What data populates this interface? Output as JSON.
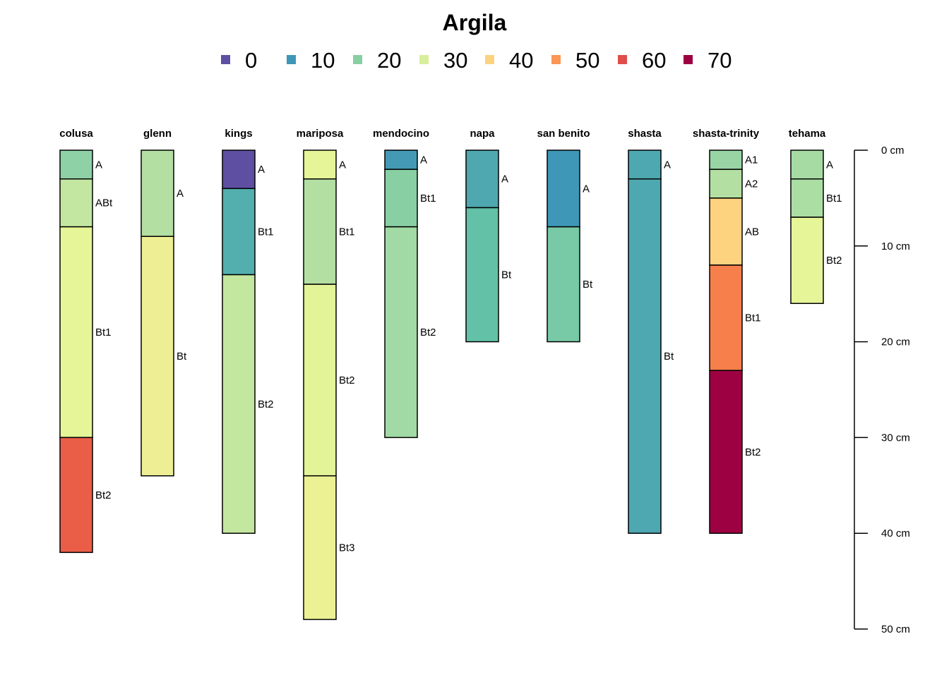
{
  "chart_data": {
    "type": "soil-profile",
    "title": "Argila",
    "legend": {
      "placement": "top-center",
      "entries": [
        {
          "label": "0",
          "color": "#5E4FA2"
        },
        {
          "label": "10",
          "color": "#3F96B7"
        },
        {
          "label": "20",
          "color": "#88CFA4"
        },
        {
          "label": "30",
          "color": "#D7EF9B"
        },
        {
          "label": "40",
          "color": "#FDD380"
        },
        {
          "label": "50",
          "color": "#FA9656"
        },
        {
          "label": "60",
          "color": "#DF4E4B"
        },
        {
          "label": "70",
          "color": "#9E0142"
        }
      ]
    },
    "depth_axis": {
      "ylim": [
        0,
        50
      ],
      "ticks": [
        0,
        10,
        20,
        30,
        40,
        50
      ],
      "tick_labels": [
        "0 cm",
        "10 cm",
        "20 cm",
        "30 cm",
        "40 cm",
        "50 cm"
      ]
    },
    "profiles": [
      {
        "name": "colusa",
        "horizons": [
          {
            "name": "A",
            "top": 0,
            "bottom": 3,
            "color": "#8ED1A6"
          },
          {
            "name": "ABt",
            "top": 3,
            "bottom": 8,
            "color": "#C3E7A0"
          },
          {
            "name": "Bt1",
            "top": 8,
            "bottom": 30,
            "color": "#E6F598"
          },
          {
            "name": "Bt2",
            "top": 30,
            "bottom": 42,
            "color": "#EA5E47"
          }
        ]
      },
      {
        "name": "glenn",
        "horizons": [
          {
            "name": "A",
            "top": 0,
            "bottom": 9,
            "color": "#B3E0A2"
          },
          {
            "name": "Bt",
            "top": 9,
            "bottom": 34,
            "color": "#EEEE94"
          }
        ]
      },
      {
        "name": "kings",
        "horizons": [
          {
            "name": "A",
            "top": 0,
            "bottom": 4,
            "color": "#5E4FA2"
          },
          {
            "name": "Bt1",
            "top": 4,
            "bottom": 13,
            "color": "#52AFAE"
          },
          {
            "name": "Bt2",
            "top": 13,
            "bottom": 40,
            "color": "#C3E79F"
          }
        ]
      },
      {
        "name": "mariposa",
        "horizons": [
          {
            "name": "A",
            "top": 0,
            "bottom": 3,
            "color": "#E6F598"
          },
          {
            "name": "Bt1",
            "top": 3,
            "bottom": 14,
            "color": "#B3E0A2"
          },
          {
            "name": "Bt2",
            "top": 14,
            "bottom": 34,
            "color": "#E3F397"
          },
          {
            "name": "Bt3",
            "top": 34,
            "bottom": 49,
            "color": "#ECF194"
          }
        ]
      },
      {
        "name": "mendocino",
        "horizons": [
          {
            "name": "A",
            "top": 0,
            "bottom": 2,
            "color": "#449AB5"
          },
          {
            "name": "Bt1",
            "top": 2,
            "bottom": 8,
            "color": "#88CFA4"
          },
          {
            "name": "Bt2",
            "top": 8,
            "bottom": 30,
            "color": "#A1DAA4"
          }
        ]
      },
      {
        "name": "napa",
        "horizons": [
          {
            "name": "A",
            "top": 0,
            "bottom": 6,
            "color": "#4FA8B0"
          },
          {
            "name": "Bt",
            "top": 6,
            "bottom": 20,
            "color": "#62C1A6"
          }
        ]
      },
      {
        "name": "san benito",
        "horizons": [
          {
            "name": "A",
            "top": 0,
            "bottom": 8,
            "color": "#3F97B7"
          },
          {
            "name": "Bt",
            "top": 8,
            "bottom": 20,
            "color": "#78C9A6"
          }
        ]
      },
      {
        "name": "shasta",
        "horizons": [
          {
            "name": "A",
            "top": 0,
            "bottom": 3,
            "color": "#4EA8B1"
          },
          {
            "name": "Bt",
            "top": 3,
            "bottom": 40,
            "color": "#4EA8B1"
          }
        ]
      },
      {
        "name": "shasta-trinity",
        "horizons": [
          {
            "name": "A1",
            "top": 0,
            "bottom": 2,
            "color": "#99D5A4"
          },
          {
            "name": "A2",
            "top": 2,
            "bottom": 5,
            "color": "#B3E0A2"
          },
          {
            "name": "AB",
            "top": 5,
            "bottom": 12,
            "color": "#FDD380"
          },
          {
            "name": "Bt1",
            "top": 12,
            "bottom": 23,
            "color": "#F67F4B"
          },
          {
            "name": "Bt2",
            "top": 23,
            "bottom": 40,
            "color": "#9E0142"
          }
        ]
      },
      {
        "name": "tehama",
        "horizons": [
          {
            "name": "A",
            "top": 0,
            "bottom": 3,
            "color": "#A6DCA4"
          },
          {
            "name": "Bt1",
            "top": 3,
            "bottom": 7,
            "color": "#AADEA3"
          },
          {
            "name": "Bt2",
            "top": 7,
            "bottom": 16,
            "color": "#E6F598"
          }
        ]
      }
    ]
  }
}
